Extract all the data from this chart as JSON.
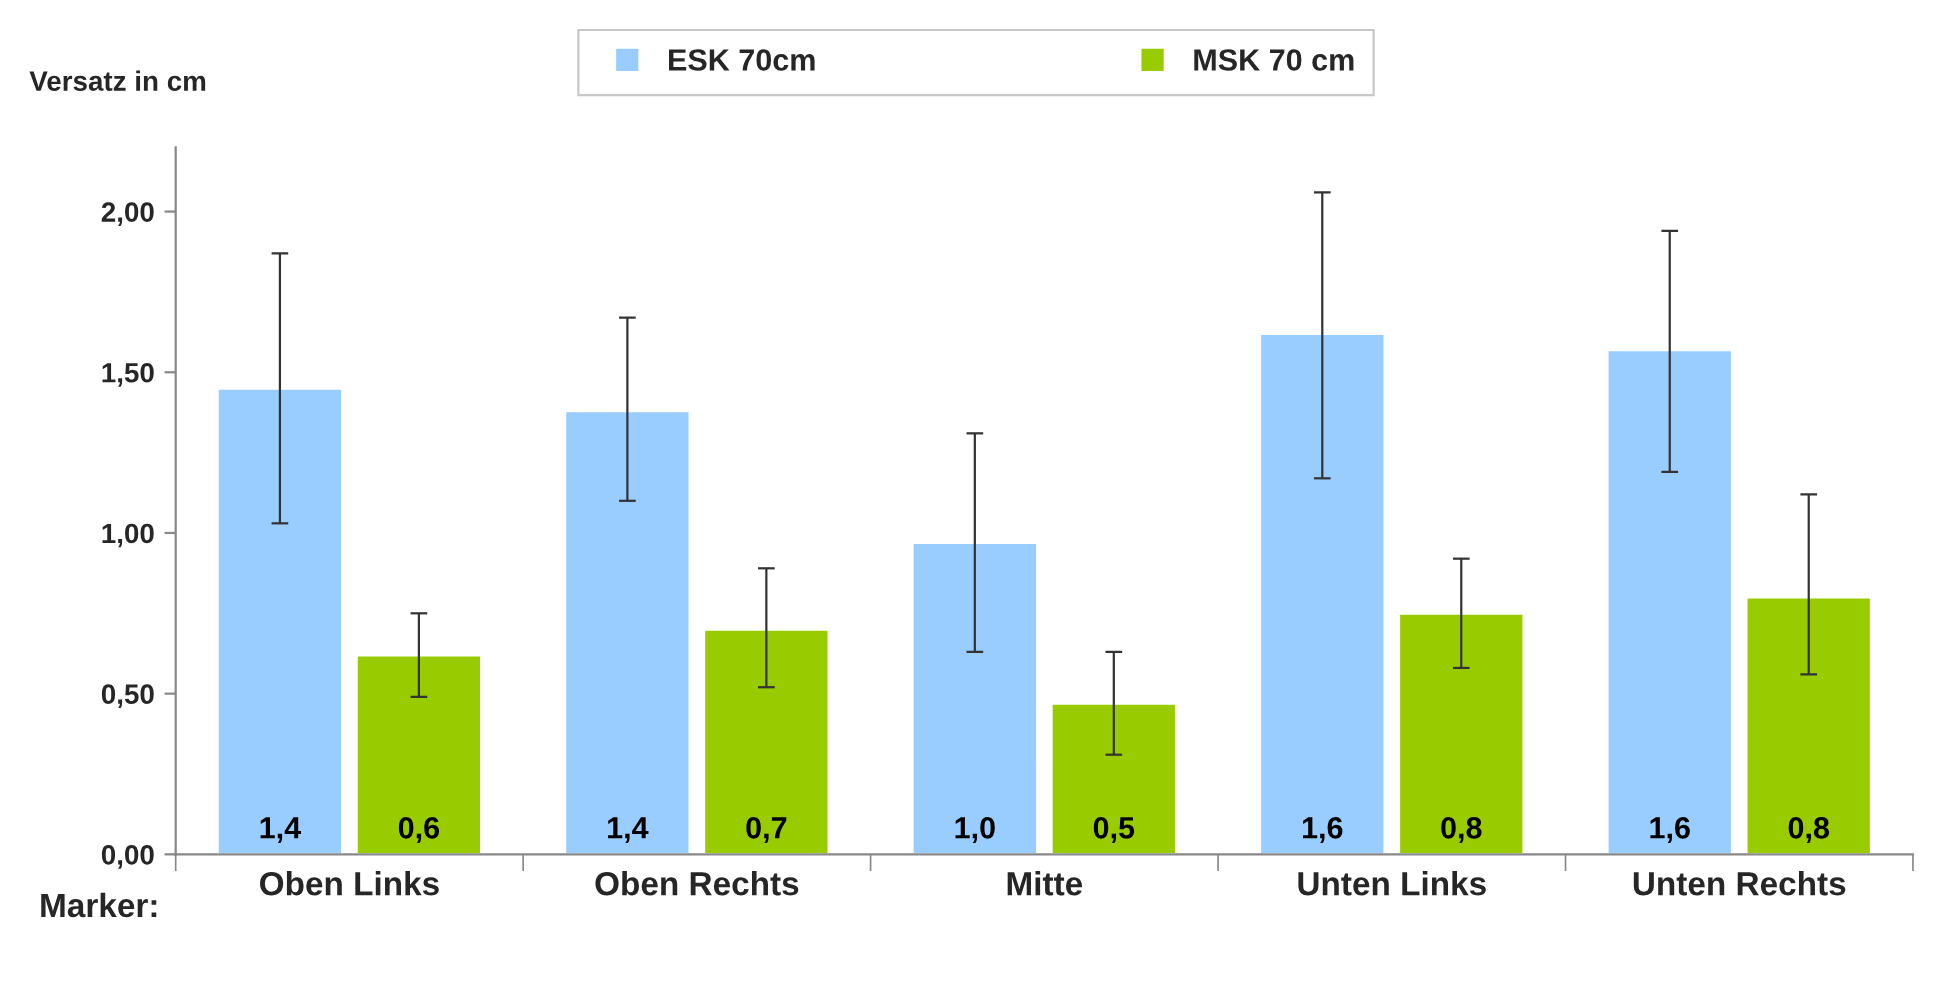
{
  "chart_data": {
    "type": "bar",
    "ylabel": "Versatz in cm",
    "xlabel": "Marker:",
    "categories": [
      "Oben Links",
      "Oben Rechts",
      "Mitte",
      "Unten Links",
      "Unten Rechts"
    ],
    "series": [
      {
        "name": "ESK 70cm",
        "color": "#99ccff",
        "values": [
          1.45,
          1.38,
          0.97,
          1.62,
          1.57
        ],
        "errors": [
          [
            1.03,
            1.87
          ],
          [
            1.1,
            1.67
          ],
          [
            0.63,
            1.31
          ],
          [
            1.17,
            2.06
          ],
          [
            1.19,
            1.94
          ]
        ],
        "value_labels": [
          "1,4",
          "1,4",
          "1,0",
          "1,6",
          "1,6"
        ]
      },
      {
        "name": "MSK 70 cm",
        "color": "#99cc00",
        "values": [
          0.62,
          0.7,
          0.47,
          0.75,
          0.8
        ],
        "errors": [
          [
            0.49,
            0.75
          ],
          [
            0.52,
            0.89
          ],
          [
            0.31,
            0.63
          ],
          [
            0.58,
            0.92
          ],
          [
            0.56,
            1.12
          ]
        ],
        "value_labels": [
          "0,6",
          "0,7",
          "0,5",
          "0,8",
          "0,8"
        ]
      }
    ],
    "ylim": [
      0,
      2.2
    ],
    "yticks": [
      {
        "value": 0,
        "label": "0,00"
      },
      {
        "value": 0.5,
        "label": "0,50"
      },
      {
        "value": 1,
        "label": "1,00"
      },
      {
        "value": 1.5,
        "label": "1,50"
      },
      {
        "value": 2,
        "label": "2,00"
      }
    ],
    "grid": false,
    "legend": "top"
  }
}
